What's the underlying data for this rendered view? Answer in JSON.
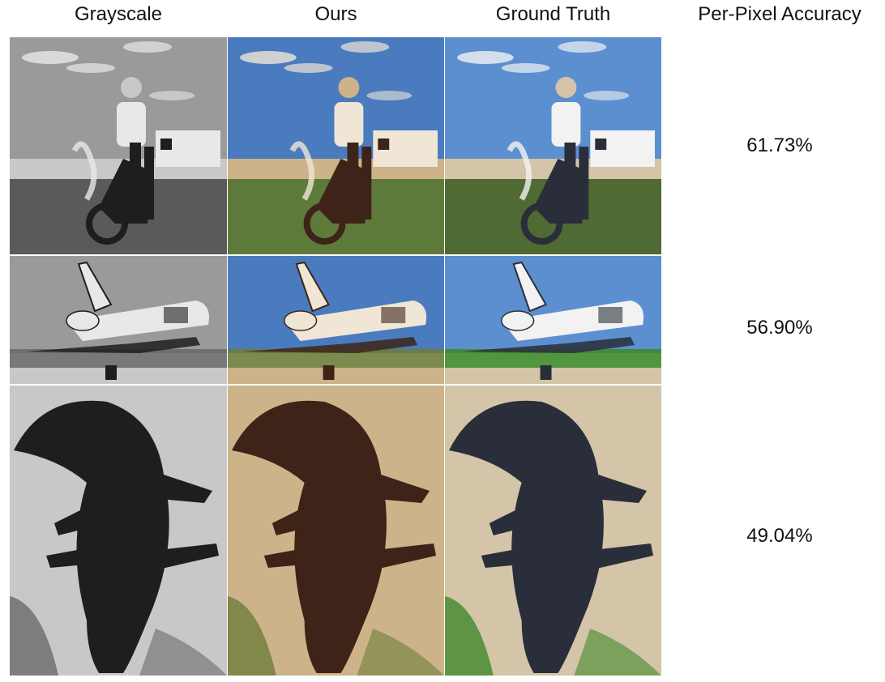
{
  "columns": {
    "grayscale": "Grayscale",
    "ours": "Ours",
    "ground_truth": "Ground Truth",
    "accuracy": "Per-Pixel Accuracy"
  },
  "rows": [
    {
      "subject": "motorcycle-rider",
      "accuracy": "61.73%"
    },
    {
      "subject": "space-shuttle",
      "accuracy": "56.90%"
    },
    {
      "subject": "alligator",
      "accuracy": "49.04%"
    }
  ],
  "palettes": {
    "grayscale": {
      "sky": "#9a9a9a",
      "ground": "#5a5a5a",
      "subject": "#1e1e1e",
      "light": "#e8e8e8",
      "sand": "#c8c8c8",
      "grass": "#6a6a6a"
    },
    "ours": {
      "sky": "#4a7bbf",
      "ground": "#5e7a3a",
      "subject": "#3e2418",
      "light": "#efe6d6",
      "sand": "#cdb38a",
      "grass": "#6e7d3a"
    },
    "ground_truth": {
      "sky": "#5c8fd0",
      "ground": "#4f6a32",
      "subject": "#2a2e3a",
      "light": "#f2f2f2",
      "sand": "#d4c4a8",
      "grass": "#3f8a2a"
    }
  }
}
